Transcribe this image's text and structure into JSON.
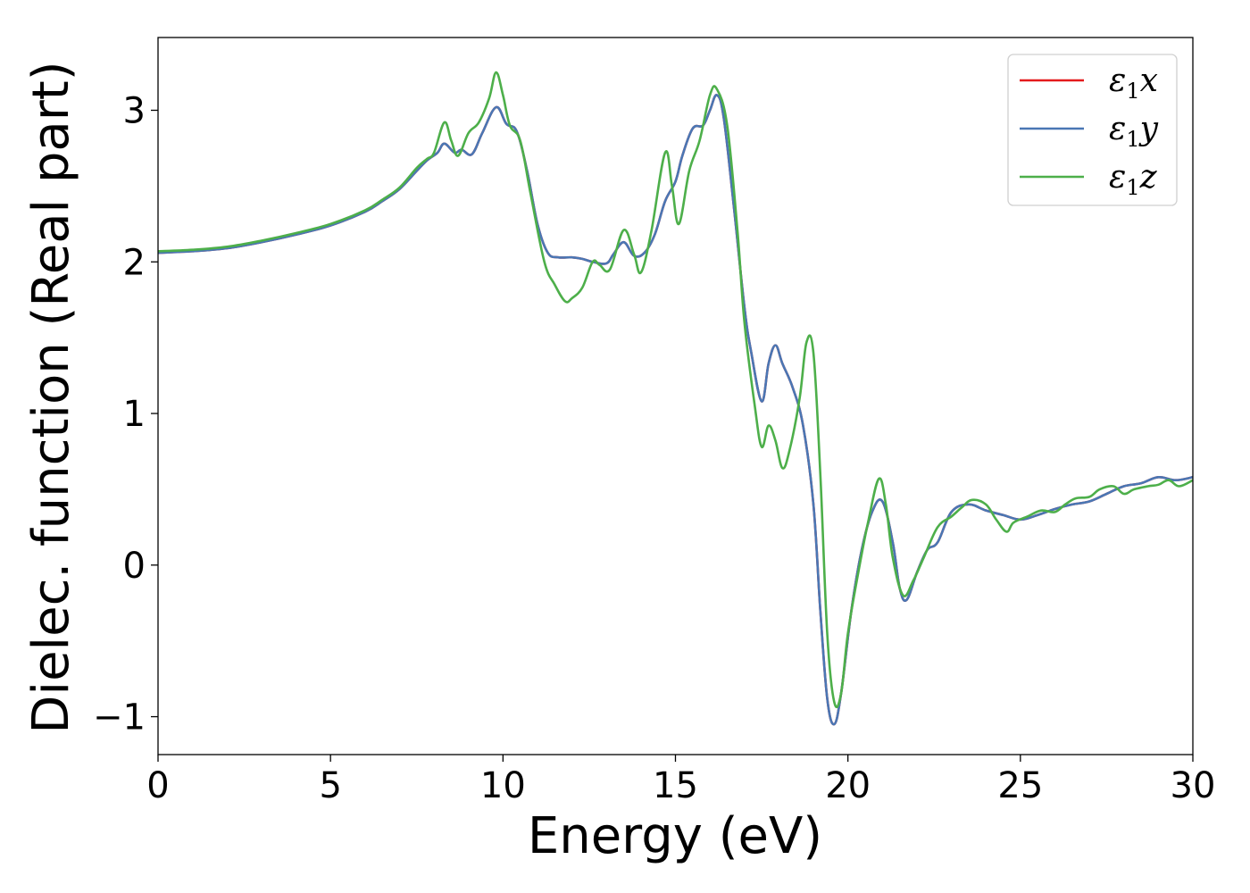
{
  "chart_data": {
    "type": "line",
    "title": "",
    "xlabel": "Energy (eV)",
    "ylabel": "Dielec. function (Real part)",
    "xlim": [
      0,
      30
    ],
    "ylim": [
      -1.25,
      3.48
    ],
    "xticks": [
      0,
      5,
      10,
      15,
      20,
      25,
      30
    ],
    "xtick_labels": [
      "0",
      "5",
      "10",
      "15",
      "20",
      "25",
      "30"
    ],
    "yticks": [
      -1,
      0,
      1,
      2,
      3
    ],
    "ytick_labels": [
      "−1",
      "0",
      "1",
      "2",
      "3"
    ],
    "grid": false,
    "legend_position": "top-right",
    "series": [
      {
        "name": "ε₁x",
        "legend_base": "ε",
        "legend_sub": "1",
        "legend_var": "x",
        "color": "#e41a1c",
        "x": [
          0,
          1,
          2,
          3,
          4,
          5,
          6,
          6.5,
          7,
          7.5,
          7.8,
          8.1,
          8.3,
          8.6,
          8.8,
          9.1,
          9.4,
          9.8,
          10.1,
          10.4,
          10.7,
          11,
          11.3,
          11.6,
          12,
          12.3,
          12.6,
          13,
          13.2,
          13.5,
          13.8,
          14.1,
          14.4,
          14.7,
          15,
          15.2,
          15.5,
          15.8,
          16,
          16.2,
          16.4,
          16.7,
          17,
          17.2,
          17.5,
          17.7,
          17.9,
          18.1,
          18.4,
          18.7,
          19,
          19.2,
          19.4,
          19.6,
          19.8,
          20.1,
          20.4,
          20.7,
          21,
          21.3,
          21.5,
          21.7,
          22,
          22.3,
          22.6,
          23,
          23.5,
          24,
          24.5,
          25,
          25.5,
          26,
          26.5,
          27,
          27.5,
          28,
          28.5,
          29,
          29.5,
          30
        ],
        "values": [
          2.06,
          2.07,
          2.09,
          2.13,
          2.18,
          2.24,
          2.33,
          2.4,
          2.48,
          2.6,
          2.67,
          2.72,
          2.78,
          2.72,
          2.74,
          2.71,
          2.85,
          3.02,
          2.91,
          2.86,
          2.6,
          2.25,
          2.06,
          2.03,
          2.03,
          2.02,
          2.0,
          1.99,
          2.05,
          2.13,
          2.04,
          2.06,
          2.18,
          2.4,
          2.53,
          2.7,
          2.88,
          2.9,
          3.0,
          3.1,
          2.95,
          2.35,
          1.7,
          1.4,
          1.08,
          1.33,
          1.45,
          1.33,
          1.17,
          0.92,
          0.4,
          -0.3,
          -0.88,
          -1.05,
          -0.85,
          -0.3,
          0.1,
          0.35,
          0.42,
          0.15,
          -0.15,
          -0.23,
          -0.05,
          0.1,
          0.15,
          0.35,
          0.4,
          0.36,
          0.33,
          0.3,
          0.33,
          0.37,
          0.4,
          0.42,
          0.47,
          0.52,
          0.54,
          0.58,
          0.56,
          0.58
        ]
      },
      {
        "name": "ε₁y",
        "legend_base": "ε",
        "legend_sub": "1",
        "legend_var": "y",
        "color": "#4a77b4",
        "x": [
          0,
          1,
          2,
          3,
          4,
          5,
          6,
          6.5,
          7,
          7.5,
          7.8,
          8.1,
          8.3,
          8.6,
          8.8,
          9.1,
          9.4,
          9.8,
          10.1,
          10.4,
          10.7,
          11,
          11.3,
          11.6,
          12,
          12.3,
          12.6,
          13,
          13.2,
          13.5,
          13.8,
          14.1,
          14.4,
          14.7,
          15,
          15.2,
          15.5,
          15.8,
          16,
          16.2,
          16.4,
          16.7,
          17,
          17.2,
          17.5,
          17.7,
          17.9,
          18.1,
          18.4,
          18.7,
          19,
          19.2,
          19.4,
          19.6,
          19.8,
          20.1,
          20.4,
          20.7,
          21,
          21.3,
          21.5,
          21.7,
          22,
          22.3,
          22.6,
          23,
          23.5,
          24,
          24.5,
          25,
          25.5,
          26,
          26.5,
          27,
          27.5,
          28,
          28.5,
          29,
          29.5,
          30
        ],
        "values": [
          2.06,
          2.07,
          2.09,
          2.13,
          2.18,
          2.24,
          2.33,
          2.4,
          2.48,
          2.6,
          2.67,
          2.72,
          2.78,
          2.72,
          2.74,
          2.71,
          2.85,
          3.02,
          2.91,
          2.86,
          2.6,
          2.25,
          2.06,
          2.03,
          2.03,
          2.02,
          2.0,
          1.99,
          2.05,
          2.13,
          2.04,
          2.06,
          2.18,
          2.4,
          2.53,
          2.7,
          2.88,
          2.9,
          3.0,
          3.1,
          2.95,
          2.35,
          1.7,
          1.4,
          1.08,
          1.33,
          1.45,
          1.33,
          1.17,
          0.92,
          0.4,
          -0.3,
          -0.88,
          -1.05,
          -0.85,
          -0.3,
          0.1,
          0.35,
          0.42,
          0.15,
          -0.15,
          -0.23,
          -0.05,
          0.1,
          0.15,
          0.35,
          0.4,
          0.36,
          0.33,
          0.3,
          0.33,
          0.37,
          0.4,
          0.42,
          0.47,
          0.52,
          0.54,
          0.58,
          0.56,
          0.58
        ]
      },
      {
        "name": "ε₁z",
        "legend_base": "ε",
        "legend_sub": "1",
        "legend_var": "z",
        "color": "#4daf4a",
        "x": [
          0,
          1,
          2,
          3,
          4,
          5,
          6,
          6.5,
          7,
          7.5,
          7.8,
          8.0,
          8.3,
          8.5,
          8.7,
          9.0,
          9.3,
          9.6,
          9.8,
          10.0,
          10.2,
          10.5,
          10.8,
          11.2,
          11.5,
          11.8,
          12.0,
          12.3,
          12.6,
          12.8,
          13.1,
          13.5,
          13.8,
          14.0,
          14.3,
          14.7,
          14.9,
          15.1,
          15.4,
          15.7,
          16.0,
          16.2,
          16.5,
          16.8,
          17.0,
          17.3,
          17.5,
          17.7,
          17.9,
          18.1,
          18.3,
          18.6,
          18.8,
          19.0,
          19.2,
          19.4,
          19.6,
          19.8,
          20.0,
          20.3,
          20.6,
          20.9,
          21.1,
          21.3,
          21.6,
          21.9,
          22.2,
          22.6,
          23.0,
          23.3,
          23.6,
          24.0,
          24.3,
          24.6,
          24.8,
          25.2,
          25.6,
          26.0,
          26.3,
          26.6,
          27.0,
          27.3,
          27.7,
          28.0,
          28.3,
          28.7,
          29.0,
          29.3,
          29.6,
          30
        ],
        "values": [
          2.07,
          2.08,
          2.1,
          2.14,
          2.19,
          2.25,
          2.34,
          2.41,
          2.49,
          2.62,
          2.68,
          2.72,
          2.92,
          2.8,
          2.7,
          2.85,
          2.92,
          3.08,
          3.25,
          3.1,
          2.9,
          2.8,
          2.45,
          2.0,
          1.85,
          1.74,
          1.76,
          1.83,
          2.0,
          1.98,
          1.95,
          2.21,
          2.05,
          1.93,
          2.2,
          2.72,
          2.5,
          2.25,
          2.6,
          2.8,
          3.1,
          3.14,
          2.9,
          2.2,
          1.6,
          1.05,
          0.78,
          0.92,
          0.82,
          0.64,
          0.75,
          1.1,
          1.47,
          1.4,
          0.6,
          -0.45,
          -0.9,
          -0.85,
          -0.45,
          -0.05,
          0.3,
          0.57,
          0.4,
          0.05,
          -0.2,
          -0.1,
          0.05,
          0.25,
          0.32,
          0.38,
          0.43,
          0.4,
          0.3,
          0.22,
          0.28,
          0.32,
          0.36,
          0.35,
          0.4,
          0.44,
          0.45,
          0.5,
          0.52,
          0.47,
          0.5,
          0.52,
          0.53,
          0.56,
          0.52,
          0.56
        ]
      }
    ]
  }
}
